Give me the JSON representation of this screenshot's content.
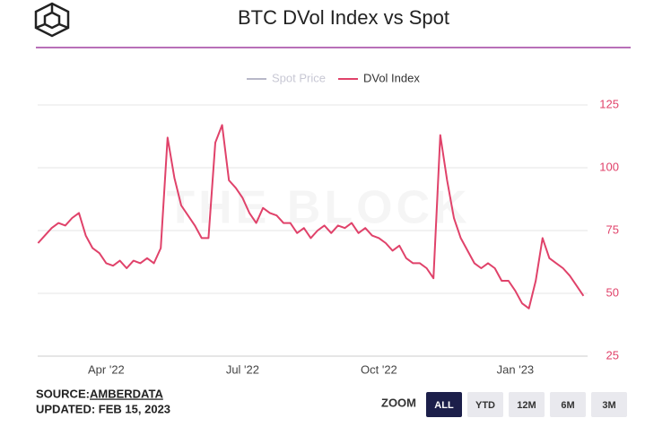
{
  "chart_data": {
    "type": "line",
    "title": "BTC DVol Index vs Spot",
    "watermark": "THE BLOCK",
    "categories": [
      null,
      null,
      null,
      null,
      null,
      null,
      null,
      null,
      null,
      null,
      "Apr '22",
      null,
      null,
      null,
      null,
      null,
      null,
      null,
      null,
      null,
      null,
      null,
      null,
      null,
      null,
      null,
      null,
      null,
      null,
      null,
      "Jul '22",
      null,
      null,
      null,
      null,
      null,
      null,
      null,
      null,
      null,
      null,
      null,
      null,
      null,
      null,
      null,
      null,
      null,
      null,
      null,
      "Oct '22",
      null,
      null,
      null,
      null,
      null,
      null,
      null,
      null,
      null,
      null,
      null,
      null,
      null,
      null,
      null,
      null,
      null,
      null,
      null,
      "Jan '23",
      null,
      null,
      null,
      null,
      null,
      null,
      null,
      null,
      null,
      null
    ],
    "series": [
      {
        "name": "Spot Price",
        "color": "#b8b8c8",
        "visible": false
      },
      {
        "name": "DVol Index",
        "color": "#e0426a",
        "visible": true,
        "axis": "y2",
        "values": [
          70,
          73,
          76,
          78,
          77,
          80,
          82,
          73,
          68,
          66,
          62,
          61,
          63,
          60,
          63,
          62,
          64,
          62,
          68,
          112,
          96,
          85,
          81,
          77,
          72,
          72,
          110,
          117,
          95,
          92,
          88,
          82,
          78,
          84,
          82,
          81,
          78,
          78,
          74,
          76,
          72,
          75,
          77,
          74,
          77,
          76,
          78,
          74,
          76,
          73,
          72,
          70,
          67,
          69,
          64,
          62,
          62,
          60,
          56,
          113,
          95,
          80,
          72,
          67,
          62,
          60,
          62,
          60,
          55,
          55,
          51,
          46,
          44,
          55,
          72,
          64,
          62,
          60,
          57,
          53,
          49
        ]
      }
    ],
    "y2lim": [
      25,
      125
    ],
    "y2ticks": [
      25,
      50,
      75,
      100,
      125
    ],
    "grid": true,
    "legend": "top"
  },
  "footer": {
    "source_label": "SOURCE:",
    "source_name": "AMBERDATA",
    "updated": "UPDATED: FEB 15, 2023"
  },
  "zoom": {
    "label": "ZOOM",
    "buttons": [
      "ALL",
      "YTD",
      "12M",
      "6M",
      "3M"
    ],
    "active": 0
  }
}
